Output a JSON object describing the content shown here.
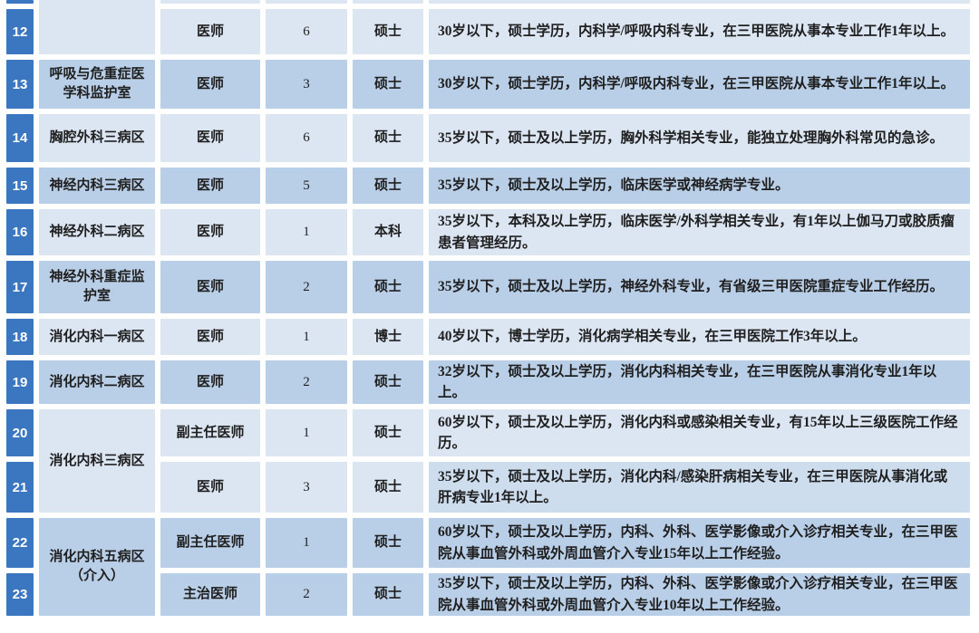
{
  "colors": {
    "background": "#ffffff",
    "index_cell": "#3b76c1",
    "index_text": "#ffffff",
    "row_light": "#dce6f2",
    "row_dark": "#b9cee7",
    "row_mid": "#cdddee",
    "text": "#1f1f1f"
  },
  "table": {
    "description": "hospital-recruitment-positions-table",
    "departments": [
      {
        "label": "",
        "start_row": "12",
        "row_span": 1,
        "continues_above": true
      },
      {
        "label": "呼吸与危重症医学科监护室",
        "start_row": "13",
        "row_span": 1
      },
      {
        "label": "胸腔外科三病区",
        "start_row": "14",
        "row_span": 1
      },
      {
        "label": "神经内科三病区",
        "start_row": "15",
        "row_span": 1
      },
      {
        "label": "神经外科二病区",
        "start_row": "16",
        "row_span": 1
      },
      {
        "label": "神经外科重症监护室",
        "start_row": "17",
        "row_span": 1
      },
      {
        "label": "消化内科一病区",
        "start_row": "18",
        "row_span": 1
      },
      {
        "label": "消化内科二病区",
        "start_row": "19",
        "row_span": 1
      },
      {
        "label": "消化内科三病区",
        "start_row": "20",
        "row_span": 2
      },
      {
        "label": "消化内科五病区（介入）",
        "start_row": "22",
        "row_span": 2
      }
    ],
    "rows": [
      {
        "no": "12",
        "position": "医师",
        "count": "6",
        "degree": "硕士",
        "requirement": "30岁以下，硕士学历，内科学/呼吸内科专业，在三甲医院从事本专业工作1年以上。"
      },
      {
        "no": "13",
        "position": "医师",
        "count": "3",
        "degree": "硕士",
        "requirement": "30岁以下，硕士学历，内科学/呼吸内科专业，在三甲医院从事本专业工作1年以上。"
      },
      {
        "no": "14",
        "position": "医师",
        "count": "6",
        "degree": "硕士",
        "requirement": "35岁以下，硕士及以上学历，胸外科学相关专业，能独立处理胸外科常见的急诊。"
      },
      {
        "no": "15",
        "position": "医师",
        "count": "5",
        "degree": "硕士",
        "requirement": "35岁以下，硕士及以上学历，临床医学或神经病学专业。"
      },
      {
        "no": "16",
        "position": "医师",
        "count": "1",
        "degree": "本科",
        "requirement": "35岁以下，本科及以上学历，临床医学/外科学相关专业，有1年以上伽马刀或胶质瘤患者管理经历。"
      },
      {
        "no": "17",
        "position": "医师",
        "count": "2",
        "degree": "硕士",
        "requirement": "35岁以下，硕士及以上学历，神经外科专业，有省级三甲医院重症专业工作经历。"
      },
      {
        "no": "18",
        "position": "医师",
        "count": "1",
        "degree": "博士",
        "requirement": "40岁以下，博士学历，消化病学相关专业，在三甲医院工作3年以上。"
      },
      {
        "no": "19",
        "position": "医师",
        "count": "2",
        "degree": "硕士",
        "requirement": "32岁以下，硕士及以上学历，消化内科相关专业，在三甲医院从事消化专业1年以上。"
      },
      {
        "no": "20",
        "position": "副主任医师",
        "count": "1",
        "degree": "硕士",
        "requirement": "60岁以下，硕士及以上学历，消化内科或感染相关专业，有15年以上三级医院工作经历。"
      },
      {
        "no": "21",
        "position": "医师",
        "count": "3",
        "degree": "硕士",
        "requirement": "35岁以下，硕士及以上学历，消化内科/感染肝病相关专业，在三甲医院从事消化或肝病专业1年以上。"
      },
      {
        "no": "22",
        "position": "副主任医师",
        "count": "1",
        "degree": "硕士",
        "requirement": "60岁以下，硕士及以上学历，内科、外科、医学影像或介入诊疗相关专业，在三甲医院从事血管外科或外周血管介入专业15年以上工作经验。"
      },
      {
        "no": "23",
        "position": "主治医师",
        "count": "2",
        "degree": "硕士",
        "requirement": "35岁以下，硕士及以上学历，内科、外科、医学影像或介入诊疗相关专业，在三甲医院从事血管外科或外周血管介入专业10年以上工作经验。"
      }
    ]
  }
}
